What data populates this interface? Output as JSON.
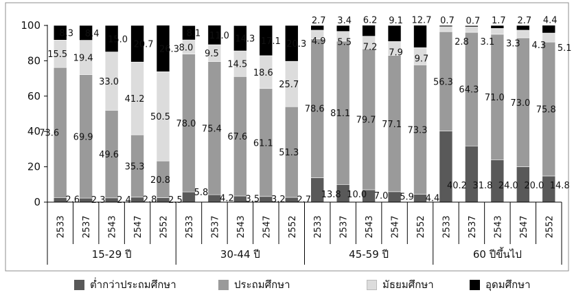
{
  "chart_data": {
    "type": "bar",
    "stacked": true,
    "title": "",
    "xlabel": "",
    "ylabel": "",
    "ylim": [
      0,
      100
    ],
    "yticks": [
      "0",
      "20",
      "40",
      "60",
      "80",
      "100"
    ],
    "grid": false,
    "legend_position": "bottom",
    "groups": [
      {
        "label": "15-29 ปี",
        "years": [
          "2533",
          "2537",
          "2543",
          "2547",
          "2552"
        ]
      },
      {
        "label": "30-44 ปี",
        "years": [
          "2533",
          "2537",
          "2543",
          "2547",
          "2552"
        ]
      },
      {
        "label": "45-59 ปี",
        "years": [
          "2533",
          "2537",
          "2543",
          "2547",
          "2552"
        ]
      },
      {
        "label": "60 ปีขึ้นไป",
        "years": [
          "2533",
          "2537",
          "2543",
          "2547",
          "2552"
        ]
      }
    ],
    "series": [
      {
        "name": "ต่ำกว่าประถมศึกษา",
        "color": "#595959",
        "values": [
          2.6,
          2.3,
          2.4,
          2.8,
          2.5,
          5.8,
          4.2,
          3.5,
          3.2,
          2.7,
          13.8,
          10.0,
          7.0,
          5.9,
          4.4,
          40.2,
          31.8,
          24.0,
          20.0,
          14.8
        ],
        "labels": [
          "2.6",
          "2.3",
          "2.4",
          "2.8",
          "2.5",
          "5.8",
          "4.2",
          "3.5",
          "3.2",
          "2.7",
          "13.8",
          "10.0",
          "7.0",
          "5.9",
          "4.4",
          "40.2",
          "31.8",
          "24.0",
          "20.0",
          "14.8"
        ]
      },
      {
        "name": "ประถมศึกษา",
        "color": "#9a9a9a",
        "values": [
          73.6,
          69.9,
          49.6,
          35.3,
          20.8,
          78.0,
          75.4,
          67.6,
          61.1,
          51.3,
          78.6,
          81.1,
          79.7,
          77.1,
          73.3,
          56.3,
          64.3,
          71.0,
          73.0,
          75.8
        ],
        "labels": [
          "73.6",
          "69.9",
          "49.6",
          "35.3",
          "20.8",
          "78.0",
          "75.4",
          "67.6",
          "61.1",
          "51.3",
          "78.6",
          "81.1",
          "79.7",
          "77.1",
          "73.3",
          "56.3",
          "64.3",
          "71.0",
          "73.0",
          "75.8"
        ]
      },
      {
        "name": "มัธยมศึกษา",
        "color": "#dcdcdc",
        "values": [
          15.5,
          19.4,
          33.0,
          41.2,
          50.5,
          8.0,
          9.5,
          14.5,
          18.6,
          25.7,
          4.9,
          5.5,
          7.2,
          7.9,
          9.7,
          2.8,
          3.1,
          3.3,
          4.3,
          5.1
        ],
        "labels": [
          "15.5",
          "19.4",
          "33.0",
          "41.2",
          "50.5",
          "8.0",
          "9.5",
          "14.5",
          "18.6",
          "25.7",
          "4.9",
          "5.5",
          "7.2",
          "7.9",
          "9.7",
          "2.8",
          "3.1",
          "3.3",
          "4.3",
          "5.1"
        ]
      },
      {
        "name": "อุดมศึกษา",
        "color": "#000000",
        "values": [
          8.3,
          8.4,
          15.0,
          20.7,
          26.3,
          8.1,
          11.0,
          14.3,
          17.1,
          20.3,
          2.7,
          3.4,
          6.2,
          9.1,
          12.7,
          0.7,
          0.7,
          1.7,
          2.7,
          4.4
        ],
        "labels": [
          "8.3",
          "8.4",
          "15.0",
          "20.7",
          "26.3",
          "8.1",
          "11.0",
          "14.3",
          "17.1",
          "20.3",
          "2.7",
          "3.4",
          "6.2",
          "9.1",
          "12.7",
          "0.7",
          "0.7",
          "1.7",
          "2.7",
          "4.4"
        ]
      }
    ]
  }
}
